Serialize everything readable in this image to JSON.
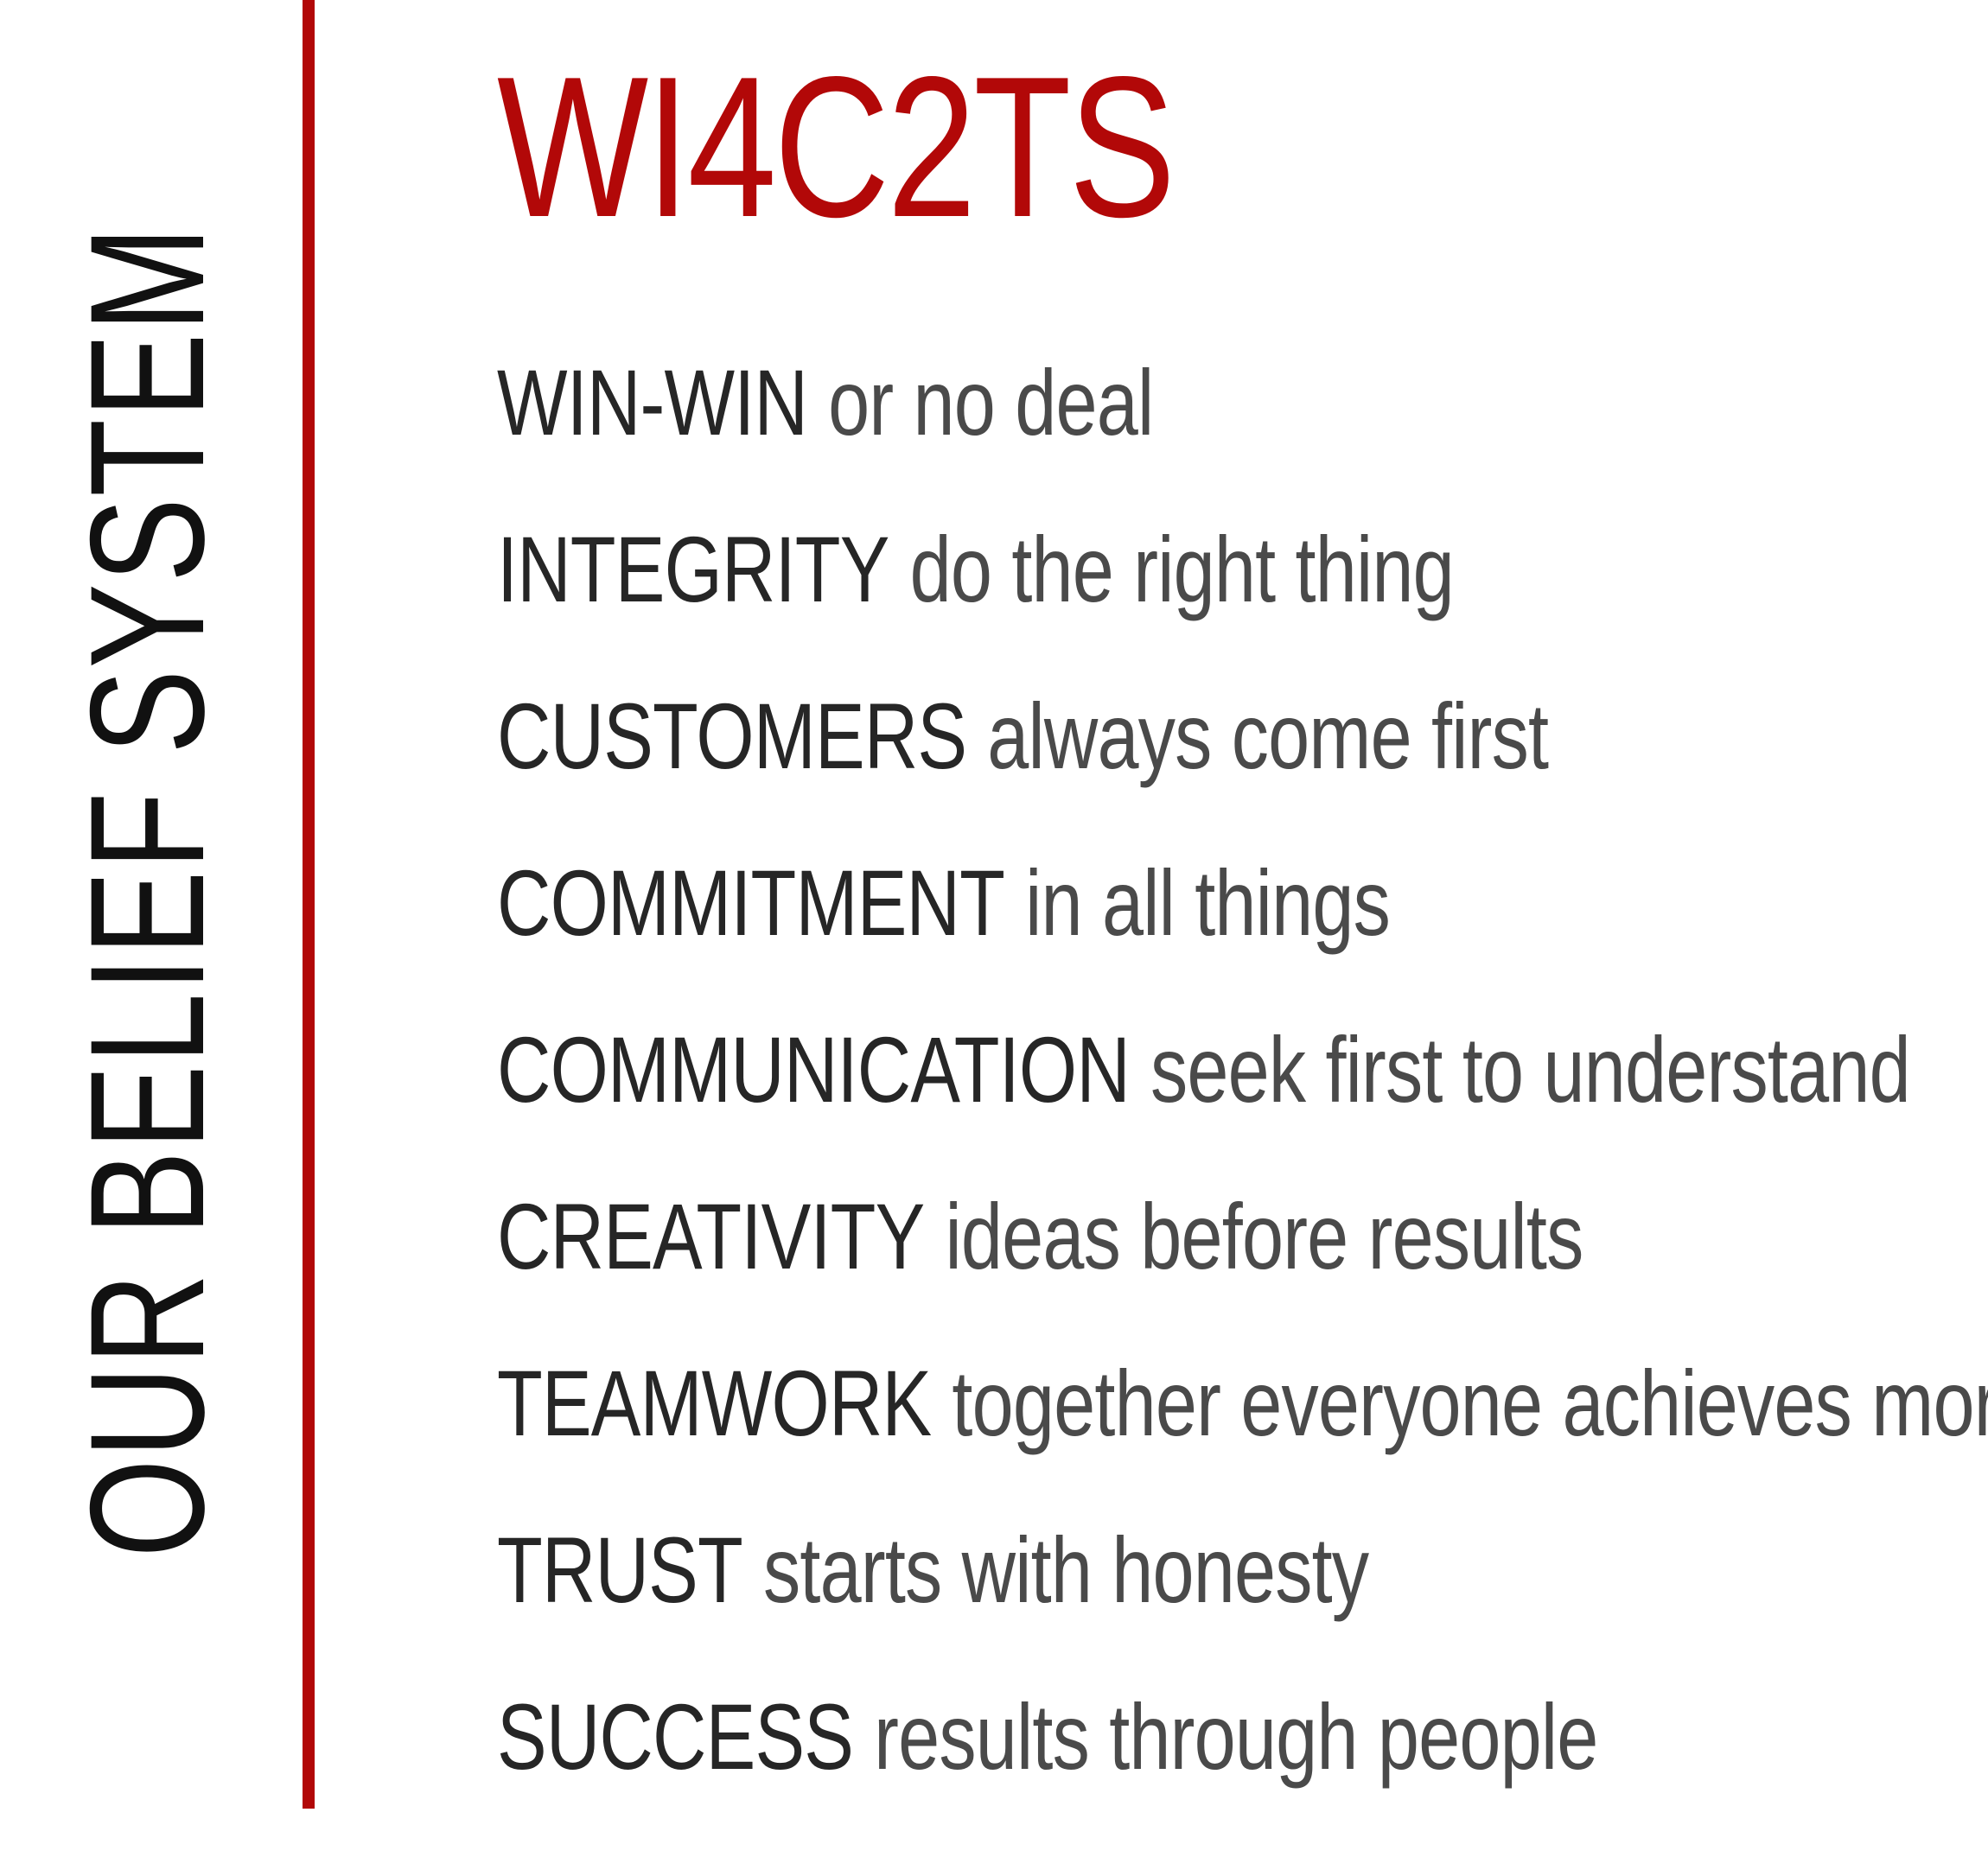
{
  "side_title": "OUR BELIEF SYSTEM",
  "heading": "WI4C2TS",
  "colors": {
    "accent": "#b20808",
    "term_text": "#262626",
    "description_text": "#4a4a4a",
    "side_title_text": "#111111",
    "background": "#ffffff"
  },
  "values": [
    {
      "term": "WIN-WIN",
      "description": "or no deal"
    },
    {
      "term": "INTEGRITY",
      "description": "do the right thing"
    },
    {
      "term": "CUSTOMERS",
      "description": "always come first"
    },
    {
      "term": "COMMITMENT",
      "description": "in all things"
    },
    {
      "term": "COMMUNICATION",
      "description": "seek first to understand"
    },
    {
      "term": "CREATIVITY",
      "description": "ideas before results"
    },
    {
      "term": "TEAMWORK",
      "description": "together everyone achieves more"
    },
    {
      "term": "TRUST",
      "description": "starts with honesty"
    },
    {
      "term": "SUCCESS",
      "description": "results through people"
    }
  ]
}
